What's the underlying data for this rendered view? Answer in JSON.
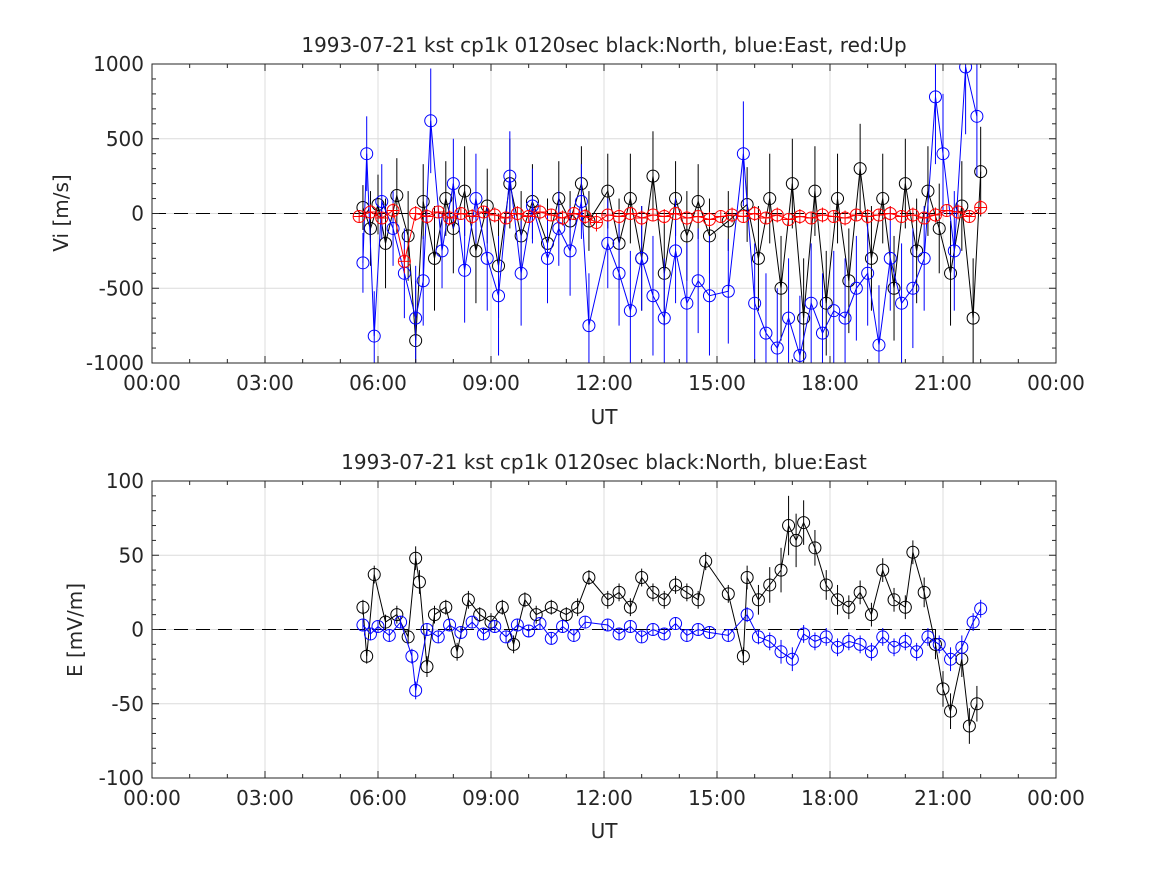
{
  "chart_data": [
    {
      "type": "scatter",
      "title": "1993-07-21 kst cp1k 0120sec black:North, blue:East, red:Up",
      "xlabel": "UT",
      "ylabel": "Vi [m/s]",
      "xlim": [
        0,
        24
      ],
      "ylim": [
        -1000,
        1000
      ],
      "xticks": [
        0,
        3,
        6,
        9,
        12,
        15,
        18,
        21,
        24
      ],
      "xticklabels": [
        "00:00",
        "03:00",
        "06:00",
        "09:00",
        "12:00",
        "15:00",
        "18:00",
        "21:00",
        "00:00"
      ],
      "yticks": [
        -1000,
        -500,
        0,
        500,
        1000
      ],
      "yticklabels": [
        "-1000",
        "-500",
        "0",
        "500",
        "1000"
      ],
      "grid": true,
      "zero_line": "dashed",
      "series": [
        {
          "name": "North",
          "color": "#000000",
          "x": [
            5.6,
            5.8,
            6.0,
            6.2,
            6.5,
            6.8,
            7.0,
            7.2,
            7.5,
            7.8,
            8.0,
            8.3,
            8.6,
            8.9,
            9.2,
            9.5,
            9.8,
            10.1,
            10.5,
            10.8,
            11.1,
            11.4,
            11.6,
            12.1,
            12.4,
            12.7,
            13.0,
            13.3,
            13.6,
            13.9,
            14.2,
            14.5,
            14.8,
            15.3,
            15.8,
            16.1,
            16.4,
            16.7,
            17.0,
            17.3,
            17.6,
            17.9,
            18.2,
            18.5,
            18.8,
            19.1,
            19.4,
            19.7,
            20.0,
            20.3,
            20.6,
            20.9,
            21.2,
            21.5,
            21.8,
            22.0
          ],
          "y": [
            40,
            -100,
            60,
            -200,
            120,
            -150,
            -850,
            80,
            -300,
            100,
            -100,
            150,
            -250,
            50,
            -350,
            200,
            -150,
            80,
            -200,
            100,
            -50,
            200,
            -50,
            150,
            -200,
            100,
            -300,
            250,
            -400,
            100,
            -150,
            80,
            -150,
            -50,
            60,
            -300,
            100,
            -500,
            200,
            -700,
            150,
            -600,
            100,
            -450,
            300,
            -300,
            100,
            -500,
            200,
            -250,
            150,
            -100,
            -400,
            50,
            -700,
            280
          ],
          "yerr": [
            150,
            250,
            200,
            300,
            250,
            300,
            400,
            250,
            350,
            250,
            300,
            300,
            350,
            250,
            350,
            300,
            300,
            250,
            300,
            250,
            200,
            250,
            200,
            250,
            300,
            300,
            350,
            300,
            350,
            250,
            300,
            250,
            250,
            200,
            250,
            350,
            300,
            350,
            300,
            400,
            300,
            350,
            300,
            350,
            300,
            350,
            300,
            350,
            300,
            350,
            300,
            300,
            350,
            300,
            400,
            300
          ]
        },
        {
          "name": "East",
          "color": "#0000ff",
          "x": [
            5.6,
            5.7,
            5.9,
            6.1,
            6.4,
            6.7,
            7.0,
            7.2,
            7.4,
            7.7,
            8.0,
            8.3,
            8.6,
            8.9,
            9.2,
            9.5,
            9.8,
            10.1,
            10.5,
            10.8,
            11.1,
            11.4,
            11.6,
            12.1,
            12.4,
            12.7,
            13.0,
            13.3,
            13.6,
            13.9,
            14.2,
            14.5,
            14.8,
            15.3,
            15.7,
            16.0,
            16.3,
            16.6,
            16.9,
            17.2,
            17.5,
            17.8,
            18.1,
            18.4,
            18.7,
            19.0,
            19.3,
            19.6,
            19.9,
            20.2,
            20.5,
            20.8,
            21.0,
            21.3,
            21.6,
            21.9
          ],
          "y": [
            -330,
            400,
            -820,
            80,
            -100,
            -400,
            -700,
            -450,
            620,
            -250,
            200,
            -380,
            100,
            -300,
            -550,
            250,
            -400,
            50,
            -300,
            -100,
            -250,
            80,
            -750,
            -200,
            -400,
            -650,
            -300,
            -550,
            -700,
            -250,
            -600,
            -450,
            -550,
            -520,
            400,
            -600,
            -800,
            -900,
            -700,
            -950,
            -600,
            -800,
            -650,
            -700,
            -500,
            -400,
            -880,
            -300,
            -600,
            -500,
            -300,
            780,
            400,
            -250,
            980,
            650
          ],
          "yerr": [
            200,
            250,
            300,
            250,
            250,
            300,
            350,
            300,
            350,
            250,
            300,
            350,
            300,
            350,
            400,
            300,
            350,
            250,
            300,
            250,
            300,
            250,
            350,
            300,
            350,
            400,
            350,
            400,
            400,
            350,
            400,
            350,
            400,
            350,
            350,
            400,
            400,
            400,
            400,
            400,
            400,
            400,
            400,
            400,
            350,
            350,
            400,
            350,
            400,
            400,
            350,
            450,
            400,
            400,
            450,
            400
          ]
        },
        {
          "name": "Up",
          "color": "#ff0000",
          "x": [
            5.5,
            5.8,
            6.1,
            6.4,
            6.7,
            7.0,
            7.3,
            7.6,
            7.9,
            8.2,
            8.5,
            8.8,
            9.1,
            9.4,
            9.7,
            10.0,
            10.3,
            10.6,
            10.9,
            11.2,
            11.5,
            11.8,
            12.1,
            12.4,
            12.7,
            13.0,
            13.3,
            13.6,
            13.9,
            14.2,
            14.5,
            14.8,
            15.1,
            15.4,
            15.7,
            16.0,
            16.3,
            16.6,
            16.9,
            17.2,
            17.5,
            17.8,
            18.1,
            18.4,
            18.7,
            19.0,
            19.3,
            19.6,
            19.9,
            20.2,
            20.5,
            20.8,
            21.1,
            21.4,
            21.7,
            22.0
          ],
          "y": [
            -20,
            10,
            -30,
            20,
            -320,
            0,
            -20,
            10,
            -30,
            0,
            -20,
            10,
            -10,
            -30,
            0,
            -20,
            10,
            -10,
            -30,
            0,
            -20,
            -60,
            -10,
            -20,
            0,
            -30,
            -10,
            -20,
            0,
            -30,
            -20,
            -40,
            -20,
            -10,
            -20,
            0,
            -30,
            -10,
            -40,
            -20,
            -30,
            -10,
            -20,
            -30,
            -10,
            -20,
            -10,
            0,
            -20,
            -10,
            -30,
            -10,
            20,
            10,
            -20,
            40
          ],
          "yerr": [
            40,
            50,
            40,
            50,
            80,
            50,
            50,
            40,
            50,
            40,
            50,
            40,
            50,
            40,
            50,
            40,
            50,
            40,
            50,
            40,
            50,
            60,
            40,
            50,
            40,
            50,
            40,
            50,
            40,
            50,
            40,
            50,
            40,
            50,
            40,
            50,
            40,
            50,
            40,
            50,
            40,
            50,
            40,
            50,
            40,
            50,
            40,
            50,
            40,
            50,
            40,
            50,
            40,
            50,
            40,
            50
          ]
        }
      ]
    },
    {
      "type": "scatter",
      "title": "1993-07-21 kst cp1k 0120sec black:North, blue:East",
      "xlabel": "UT",
      "ylabel": "E [mV/m]",
      "xlim": [
        0,
        24
      ],
      "ylim": [
        -100,
        100
      ],
      "xticks": [
        0,
        3,
        6,
        9,
        12,
        15,
        18,
        21,
        24
      ],
      "xticklabels": [
        "00:00",
        "03:00",
        "06:00",
        "09:00",
        "12:00",
        "15:00",
        "18:00",
        "21:00",
        "00:00"
      ],
      "yticks": [
        -100,
        -50,
        0,
        50,
        100
      ],
      "yticklabels": [
        "-100",
        "-50",
        "0",
        "50",
        "100"
      ],
      "grid": true,
      "zero_line": "dashed",
      "series": [
        {
          "name": "North",
          "color": "#000000",
          "x": [
            5.6,
            5.7,
            5.9,
            6.2,
            6.5,
            6.8,
            7.0,
            7.1,
            7.3,
            7.5,
            7.8,
            8.1,
            8.4,
            8.7,
            9.0,
            9.3,
            9.6,
            9.9,
            10.2,
            10.6,
            11.0,
            11.3,
            11.6,
            12.1,
            12.4,
            12.7,
            13.0,
            13.3,
            13.6,
            13.9,
            14.2,
            14.5,
            14.7,
            15.3,
            15.7,
            15.8,
            16.1,
            16.4,
            16.7,
            16.9,
            17.1,
            17.3,
            17.6,
            17.9,
            18.2,
            18.5,
            18.8,
            19.1,
            19.4,
            19.7,
            20.0,
            20.2,
            20.5,
            20.8,
            21.0,
            21.2,
            21.5,
            21.7,
            21.9
          ],
          "y": [
            15,
            -18,
            37,
            5,
            10,
            -5,
            48,
            32,
            -25,
            10,
            15,
            -15,
            20,
            10,
            5,
            15,
            -10,
            20,
            10,
            15,
            10,
            15,
            35,
            20,
            25,
            15,
            35,
            25,
            20,
            30,
            25,
            20,
            46,
            24,
            -18,
            35,
            20,
            30,
            40,
            70,
            60,
            72,
            55,
            30,
            20,
            15,
            25,
            10,
            40,
            20,
            15,
            52,
            25,
            -10,
            -40,
            -55,
            -20,
            -65,
            -50
          ],
          "yerr": [
            5,
            5,
            6,
            5,
            6,
            5,
            8,
            8,
            7,
            6,
            5,
            6,
            6,
            5,
            6,
            5,
            6,
            5,
            6,
            5,
            5,
            6,
            5,
            6,
            6,
            6,
            6,
            6,
            6,
            6,
            6,
            6,
            6,
            6,
            6,
            8,
            10,
            12,
            15,
            20,
            18,
            15,
            12,
            10,
            10,
            8,
            8,
            8,
            8,
            8,
            8,
            8,
            10,
            10,
            12,
            12,
            12,
            12,
            12
          ]
        },
        {
          "name": "East",
          "color": "#0000ff",
          "x": [
            5.6,
            5.8,
            6.0,
            6.3,
            6.6,
            6.9,
            7.0,
            7.3,
            7.6,
            7.9,
            8.2,
            8.5,
            8.8,
            9.1,
            9.4,
            9.7,
            10.0,
            10.3,
            10.6,
            10.9,
            11.2,
            11.5,
            12.1,
            12.4,
            12.7,
            13.0,
            13.3,
            13.6,
            13.9,
            14.2,
            14.5,
            14.8,
            15.3,
            15.8,
            16.1,
            16.4,
            16.7,
            17.0,
            17.3,
            17.6,
            17.9,
            18.2,
            18.5,
            18.8,
            19.1,
            19.4,
            19.7,
            20.0,
            20.3,
            20.6,
            20.9,
            21.2,
            21.5,
            21.8,
            22.0
          ],
          "y": [
            3,
            -3,
            2,
            -4,
            5,
            -18,
            -41,
            0,
            -5,
            3,
            -2,
            5,
            -3,
            2,
            -5,
            3,
            -1,
            4,
            -6,
            2,
            -4,
            5,
            3,
            -3,
            2,
            -5,
            0,
            -3,
            4,
            -4,
            0,
            -2,
            -4,
            10,
            -5,
            -8,
            -15,
            -20,
            -3,
            -8,
            -5,
            -12,
            -8,
            -10,
            -15,
            -5,
            -12,
            -8,
            -15,
            -5,
            -10,
            -20,
            -12,
            5,
            14
          ],
          "yerr": [
            4,
            4,
            4,
            4,
            4,
            5,
            6,
            4,
            4,
            4,
            4,
            4,
            4,
            4,
            4,
            4,
            4,
            4,
            4,
            4,
            4,
            4,
            4,
            4,
            4,
            4,
            4,
            4,
            4,
            4,
            4,
            4,
            4,
            5,
            5,
            6,
            8,
            8,
            6,
            6,
            6,
            6,
            6,
            6,
            6,
            6,
            6,
            6,
            6,
            6,
            6,
            8,
            8,
            6,
            6
          ]
        }
      ]
    }
  ]
}
